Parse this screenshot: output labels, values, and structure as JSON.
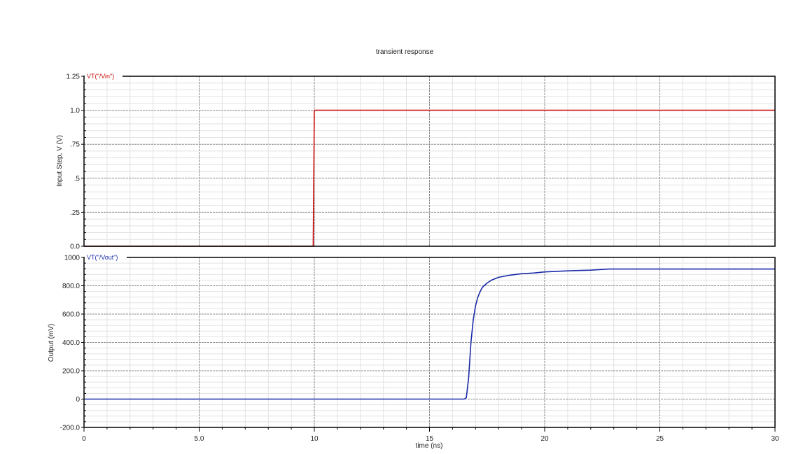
{
  "chart_data": {
    "title": "transient response",
    "xlabel": "time (ns)",
    "x_ticks": [
      "0",
      "5.0",
      "10",
      "15",
      "20",
      "25",
      "30"
    ],
    "x_range": [
      0,
      30
    ],
    "grid": true,
    "panels": [
      {
        "type": "line",
        "ylabel": "Input Step, V (V)",
        "y_range": [
          0,
          1.25
        ],
        "y_ticks": [
          {
            "value": 0,
            "label": "0.0"
          },
          {
            "value": 0.25,
            "label": ".25"
          },
          {
            "value": 0.5,
            "label": ".5"
          },
          {
            "value": 0.75,
            "label": ".75"
          },
          {
            "value": 1.0,
            "label": "1.0"
          },
          {
            "value": 1.25,
            "label": "1.25"
          }
        ],
        "series": [
          {
            "name": "VT(\"/Vin\")",
            "color": "#cc1111",
            "x": [
              0,
              9.95,
              10.0,
              10.05,
              30
            ],
            "y": [
              0,
              0,
              1.0,
              1.0,
              1.0
            ]
          }
        ]
      },
      {
        "type": "line",
        "ylabel": "Output (mV)",
        "y_range": [
          -200,
          1000
        ],
        "y_ticks": [
          {
            "value": -200,
            "label": "-200.0"
          },
          {
            "value": 0,
            "label": "0"
          },
          {
            "value": 200,
            "label": "200.0"
          },
          {
            "value": 400,
            "label": "400.0"
          },
          {
            "value": 600,
            "label": "600.0"
          },
          {
            "value": 800,
            "label": "800.0"
          },
          {
            "value": 1000,
            "label": "1000"
          }
        ],
        "series": [
          {
            "name": "VT(\"/Vout\")",
            "color": "#1a2aa8",
            "x": [
              0,
              16.5,
              16.6,
              16.7,
              16.8,
              16.9,
              17.0,
              17.1,
              17.2,
              17.3,
              17.5,
              17.7,
              18.0,
              18.5,
              19.0,
              19.5,
              20.0,
              21.0,
              22.0,
              22.8,
              24.0,
              26.0,
              30.0
            ],
            "y": [
              0,
              0,
              10,
              150,
              400,
              560,
              660,
              720,
              760,
              790,
              820,
              840,
              860,
              875,
              885,
              890,
              898,
              905,
              910,
              918,
              918,
              918,
              918
            ]
          }
        ]
      }
    ]
  }
}
